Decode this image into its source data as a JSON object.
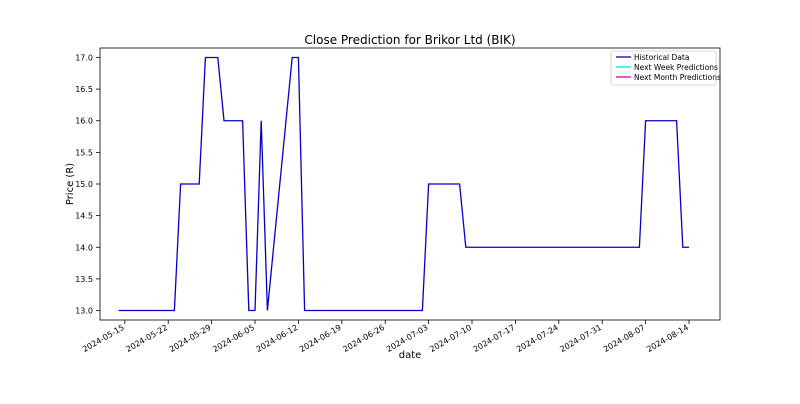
{
  "chart_data": {
    "type": "line",
    "title": "Close Prediction for Brikor Ltd (BIK)",
    "xlabel": "date",
    "ylabel": "Price (R)",
    "xlim": [
      "2024-05-11",
      "2024-08-19"
    ],
    "ylim": [
      12.85,
      17.15
    ],
    "x_ticks": [
      "2024-05-15",
      "2024-05-22",
      "2024-05-29",
      "2024-06-05",
      "2024-06-12",
      "2024-06-19",
      "2024-06-26",
      "2024-07-03",
      "2024-07-10",
      "2024-07-17",
      "2024-07-24",
      "2024-07-31",
      "2024-08-07",
      "2024-08-14"
    ],
    "y_ticks": [
      "13.0",
      "13.5",
      "14.0",
      "14.5",
      "15.0",
      "15.5",
      "16.0",
      "16.5",
      "17.0"
    ],
    "grid": false,
    "legend_position": "top-right",
    "series": [
      {
        "name": "Historical Data",
        "color": "#0000cc",
        "points": [
          [
            "2024-05-14",
            13.0
          ],
          [
            "2024-05-15",
            13.0
          ],
          [
            "2024-05-16",
            13.0
          ],
          [
            "2024-05-17",
            13.0
          ],
          [
            "2024-05-20",
            13.0
          ],
          [
            "2024-05-21",
            13.0
          ],
          [
            "2024-05-22",
            13.0
          ],
          [
            "2024-05-23",
            13.0
          ],
          [
            "2024-05-24",
            15.0
          ],
          [
            "2024-05-27",
            15.0
          ],
          [
            "2024-05-28",
            17.0
          ],
          [
            "2024-05-30",
            17.0
          ],
          [
            "2024-05-31",
            16.0
          ],
          [
            "2024-06-03",
            16.0
          ],
          [
            "2024-06-04",
            13.0
          ],
          [
            "2024-06-05",
            13.0
          ],
          [
            "2024-06-06",
            16.0
          ],
          [
            "2024-06-07",
            13.0
          ],
          [
            "2024-06-11",
            17.0
          ],
          [
            "2024-06-12",
            17.0
          ],
          [
            "2024-06-13",
            13.0
          ],
          [
            "2024-06-14",
            13.0
          ],
          [
            "2024-06-17",
            13.0
          ],
          [
            "2024-06-18",
            13.0
          ],
          [
            "2024-06-19",
            13.0
          ],
          [
            "2024-06-20",
            13.0
          ],
          [
            "2024-06-21",
            13.0
          ],
          [
            "2024-06-24",
            13.0
          ],
          [
            "2024-06-25",
            13.0
          ],
          [
            "2024-06-26",
            13.0
          ],
          [
            "2024-06-27",
            13.0
          ],
          [
            "2024-06-28",
            13.0
          ],
          [
            "2024-07-01",
            13.0
          ],
          [
            "2024-07-02",
            13.0
          ],
          [
            "2024-07-03",
            15.0
          ],
          [
            "2024-07-04",
            15.0
          ],
          [
            "2024-07-05",
            15.0
          ],
          [
            "2024-07-08",
            15.0
          ],
          [
            "2024-07-09",
            14.0
          ],
          [
            "2024-07-10",
            14.0
          ],
          [
            "2024-07-11",
            14.0
          ],
          [
            "2024-07-12",
            14.0
          ],
          [
            "2024-07-15",
            14.0
          ],
          [
            "2024-07-16",
            14.0
          ],
          [
            "2024-07-17",
            14.0
          ],
          [
            "2024-07-18",
            14.0
          ],
          [
            "2024-07-19",
            14.0
          ],
          [
            "2024-07-22",
            14.0
          ],
          [
            "2024-07-23",
            14.0
          ],
          [
            "2024-07-24",
            14.0
          ],
          [
            "2024-07-25",
            14.0
          ],
          [
            "2024-07-26",
            14.0
          ],
          [
            "2024-07-29",
            14.0
          ],
          [
            "2024-07-30",
            14.0
          ],
          [
            "2024-07-31",
            14.0
          ],
          [
            "2024-08-01",
            14.0
          ],
          [
            "2024-08-02",
            14.0
          ],
          [
            "2024-08-05",
            14.0
          ],
          [
            "2024-08-06",
            14.0
          ],
          [
            "2024-08-07",
            16.0
          ],
          [
            "2024-08-08",
            16.0
          ],
          [
            "2024-08-09",
            16.0
          ],
          [
            "2024-08-12",
            16.0
          ],
          [
            "2024-08-13",
            14.0
          ],
          [
            "2024-08-14",
            14.0
          ]
        ]
      },
      {
        "name": "Next Week Predictions",
        "color": "#00e5ee",
        "points": []
      },
      {
        "name": "Next Month Predictions",
        "color": "#cc00cc",
        "points": []
      }
    ]
  }
}
